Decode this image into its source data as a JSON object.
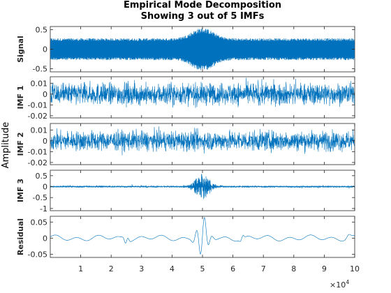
{
  "title_line1": "Empirical Mode Decomposition",
  "title_line2": "Showing 3 out of 5 IMFs",
  "shared_ylabel": "Amplitude",
  "x_multiplier_label": "×10",
  "x_multiplier_exp": "4",
  "colors": {
    "trace": "#0072BD",
    "axes": "#262626",
    "grid": "#d9d9d9"
  },
  "chart_data": {
    "type": "line",
    "x_range": [
      0,
      100000
    ],
    "x_ticks": [
      10000,
      20000,
      30000,
      40000,
      50000,
      60000,
      70000,
      80000,
      90000,
      100000
    ],
    "x_tick_labels": [
      "1",
      "2",
      "3",
      "4",
      "5",
      "6",
      "7",
      "8",
      "9",
      "10"
    ],
    "panels": [
      {
        "ylabel": "Signal",
        "ylim": [
          -0.58,
          0.58
        ],
        "yticks": [
          0.5,
          0,
          -0.5
        ],
        "ytick_labels": [
          "0.5",
          "0",
          "-0.5"
        ],
        "series_shape": "dense oscillation amplitude ~0.3, burst to ~0.55 around x=50000"
      },
      {
        "ylabel": "IMF 1",
        "ylim": [
          -0.022,
          0.016
        ],
        "yticks": [
          0.01,
          0,
          -0.01,
          -0.02
        ],
        "ytick_labels": [
          "0.01",
          "0",
          "-0.01",
          "-0.02"
        ],
        "series_shape": "dense noise amplitude ~0.012"
      },
      {
        "ylabel": "IMF 2",
        "ylim": [
          -0.022,
          0.016
        ],
        "yticks": [
          0.01,
          0,
          -0.01,
          -0.02
        ],
        "ytick_labels": [
          "0.01",
          "0",
          "-0.01",
          "-0.02"
        ],
        "series_shape": "dense noise amplitude ~0.01"
      },
      {
        "ylabel": "IMF 3",
        "ylim": [
          -1.1,
          0.75
        ],
        "yticks": [
          0.5,
          0,
          -0.5,
          -1
        ],
        "ytick_labels": [
          "0.5",
          "0",
          "-0.5",
          "-1"
        ],
        "series_shape": "small noise ~0.05, burst to ~0.6 around x=50000"
      },
      {
        "ylabel": "Residual",
        "ylim": [
          -0.06,
          0.068
        ],
        "yticks": [
          0.05,
          0,
          -0.05
        ],
        "ytick_labels": [
          "0.05",
          "0",
          "-0.05"
        ],
        "series_shape": "slow wiggle ~0.01, oscillation to ~0.06 around x=50000"
      }
    ]
  }
}
